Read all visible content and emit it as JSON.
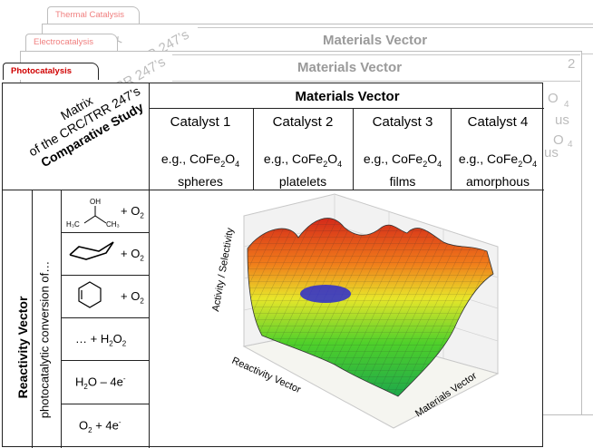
{
  "tabs": {
    "thermal": "Thermal Catalysis",
    "electro": "Electrocatalysis",
    "photo": "Photocatalysis"
  },
  "matrix": {
    "line1": "Matrix",
    "line2": "of the CRC/TRR 247’s",
    "line3": "Comparative Study"
  },
  "materials_vector": {
    "title": "Materials Vector",
    "catalysts": [
      {
        "name": "Catalyst 1",
        "example": "e.g., CoFe",
        "sub1": "2",
        "mid": "O",
        "sub2": "4",
        "morph": "spheres"
      },
      {
        "name": "Catalyst 2",
        "example": "e.g., CoFe",
        "sub1": "2",
        "mid": "O",
        "sub2": "4",
        "morph": "platelets"
      },
      {
        "name": "Catalyst 3",
        "example": "e.g., CoFe",
        "sub1": "2",
        "mid": "O",
        "sub2": "4",
        "morph": "films"
      },
      {
        "name": "Catalyst 4",
        "example": "e.g., CoFe",
        "sub1": "2",
        "mid": "O",
        "sub2": "4",
        "morph": "amorphous"
      }
    ]
  },
  "reactivity_vector": {
    "title": "Reactivity Vector",
    "subtitle": "photocatalytic conversion of…",
    "rows": [
      {
        "molecule": "isopropanol",
        "oh": "OH",
        "h3c": "H₃C",
        "ch3": "CH₃",
        "label": "+ O",
        "sub": "2"
      },
      {
        "molecule": "cyclohexane",
        "label": "+ O",
        "sub": "2"
      },
      {
        "molecule": "cyclohexene",
        "label": "+ O",
        "sub": "2"
      },
      {
        "label": "… + H",
        "sub": "2",
        "tail": "O",
        "sub2": "2"
      },
      {
        "label": "H",
        "sub": "2",
        "tail": "O – 4e",
        "sup": "-"
      },
      {
        "label": "O",
        "sub": "2",
        "tail": " + 4e",
        "sup": "-"
      }
    ]
  },
  "plot": {
    "zlabel": "Activity / Selectivity",
    "xlabel": "Reactivity Vector",
    "ylabel": "Materials Vector"
  },
  "ghost": {
    "title": "Materials Vector",
    "fragments": [
      "rix",
      "RR 247’s",
      "rix",
      "RR 247’s",
      "2",
      "O",
      "4",
      "us",
      "2",
      "O",
      "4",
      "us"
    ]
  },
  "colors": {
    "tab_active": "#d00000",
    "tab_inactive": "#f08080",
    "surface_high": "#d42a1a",
    "surface_mid": "#e8e62a",
    "surface_low": "#3b3bd0"
  }
}
